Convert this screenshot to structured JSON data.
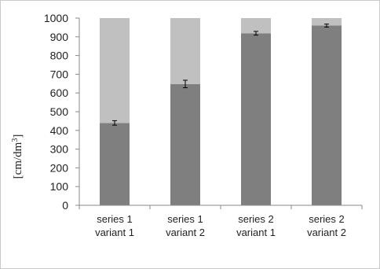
{
  "chart_data": {
    "type": "bar",
    "stacked": true,
    "categories": [
      [
        "series 1",
        "variant 1"
      ],
      [
        "series 1",
        "variant 2"
      ],
      [
        "series 2",
        "variant 1"
      ],
      [
        "series 2",
        "variant 2"
      ]
    ],
    "series": [
      {
        "color": "#7f7f7f",
        "values": [
          440,
          648,
          919,
          960
        ],
        "errors": [
          12,
          20,
          10,
          8
        ]
      },
      {
        "color": "#c0c0c0",
        "values": [
          560,
          352,
          81,
          40
        ]
      }
    ],
    "ylabel": "[cm/dm",
    "ylabel_sup": "3",
    "ylabel_end": "]",
    "ylim": [
      0,
      1000
    ],
    "yticks": [
      0,
      100,
      200,
      300,
      400,
      500,
      600,
      700,
      800,
      900,
      1000
    ],
    "grid": false,
    "legend": "none"
  }
}
